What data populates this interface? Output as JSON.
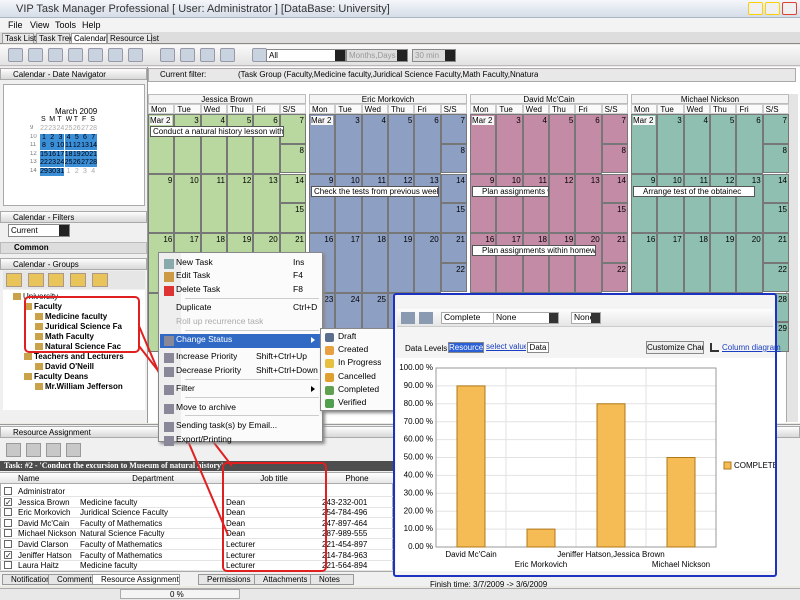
{
  "window": {
    "title": "VIP Task Manager Professional [ User: Administrator ] [DataBase: University]"
  },
  "menu": [
    "File",
    "View",
    "Tools",
    "Help"
  ],
  "tabs": [
    "Task List",
    "Task Tree",
    "Calendar",
    "Resource List"
  ],
  "toolbar": {
    "filter": "All",
    "scale": "Months,Days",
    "interval": "30 min"
  },
  "navigator": {
    "title": "Calendar - Date Navigator",
    "month": "March 2009",
    "weekdays": [
      "S",
      "M",
      "T",
      "W",
      "T",
      "F",
      "S"
    ],
    "weeks": [
      {
        "number": "9",
        "days": [
          "22",
          "23",
          "24",
          "25",
          "26",
          "27",
          "28"
        ]
      },
      {
        "number": "10",
        "days": [
          "1",
          "2",
          "3",
          "4",
          "5",
          "6",
          "7"
        ]
      },
      {
        "number": "11",
        "days": [
          "8",
          "9",
          "10",
          "11",
          "12",
          "13",
          "14"
        ]
      },
      {
        "number": "12",
        "days": [
          "15",
          "16",
          "17",
          "18",
          "19",
          "20",
          "21"
        ]
      },
      {
        "number": "13",
        "days": [
          "22",
          "23",
          "24",
          "25",
          "26",
          "27",
          "28"
        ]
      },
      {
        "number": "14",
        "days": [
          "29",
          "30",
          "31",
          "1",
          "2",
          "3",
          "4"
        ]
      }
    ]
  },
  "filters": {
    "title": "Calendar - Filters",
    "current": "Current",
    "section": "Common"
  },
  "groups": {
    "title": "Calendar - Groups",
    "tree": {
      "label": "University",
      "children": [
        {
          "label": "Faculty",
          "children": [
            {
              "label": "Medicine faculty"
            },
            {
              "label": "Juridical Science Fa"
            },
            {
              "label": "Math Faculty"
            },
            {
              "label": "Natural Science Fac"
            }
          ]
        },
        {
          "label": "Teachers and Lecturers",
          "children": [
            {
              "label": "David O'Neill"
            }
          ]
        },
        {
          "label": "Faculty Deans",
          "children": [
            {
              "label": "Mr.William Jefferson"
            }
          ]
        }
      ]
    }
  },
  "calendar": {
    "filter_label": "Current filter:",
    "filter": "(Task Group (Faculty,Medicine faculty,Juridical Science Faculty,Math Faculty,Nnatural Science Fac...",
    "days": [
      "Mon",
      "Tue",
      "Wed",
      "Thu",
      "Fri",
      "S/S"
    ],
    "weeks": [
      [
        "Mar 2",
        "3",
        "4",
        "5",
        "6",
        "7",
        "8"
      ],
      [
        "9",
        "10",
        "11",
        "12",
        "13",
        "14",
        "15"
      ],
      [
        "16",
        "17",
        "18",
        "19",
        "20",
        "21",
        "22"
      ],
      [
        "23",
        "24",
        "25",
        "26",
        "27",
        "28",
        "29"
      ]
    ],
    "resources": [
      {
        "name": "Jessica Brown",
        "color": "#b9d89f",
        "tasks": [
          {
            "week": 0,
            "text": "Conduct a natural history lesson with cla"
          }
        ]
      },
      {
        "name": "Eric Morkovich",
        "color": "#8e9fc4",
        "tasks": [
          {
            "week": 1,
            "text": "Check the tests from previous week and"
          }
        ]
      },
      {
        "name": "David Mc'Cain",
        "color": "#c48ba7",
        "tasks": [
          {
            "week": 1,
            "text": "Plan assignments wi"
          },
          {
            "week": 2,
            "text": "Plan assignments within homework pl"
          }
        ]
      },
      {
        "name": "Michael Nickson",
        "color": "#8fbfb0",
        "tasks": [
          {
            "week": 1,
            "text": "Arrange test of the obtainec"
          }
        ]
      }
    ]
  },
  "context_menu": [
    {
      "label": "New Task",
      "shortcut": "Ins"
    },
    {
      "label": "Edit Task",
      "shortcut": "F4"
    },
    {
      "label": "Delete Task",
      "shortcut": "F8"
    },
    {
      "label": "Duplicate",
      "shortcut": "Ctrl+D"
    },
    {
      "label": "Roll up recurrence task"
    },
    {
      "label": "Change Status"
    },
    {
      "label": "Increase Priority",
      "shortcut": "Shift+Ctrl+Up"
    },
    {
      "label": "Decrease Priority",
      "shortcut": "Shift+Ctrl+Down"
    },
    {
      "label": "Filter"
    },
    {
      "label": "Move to archive"
    },
    {
      "label": "Sending task(s) by Email..."
    },
    {
      "label": "Export/Printing"
    }
  ],
  "status_menu": [
    "Draft",
    "Created",
    "In Progress",
    "Cancelled",
    "Completed",
    "Verified"
  ],
  "resource_panel": {
    "title": "Resource Assignment",
    "task": "Task: #2 - 'Conduct the excursion to Museum of natural history'",
    "columns": [
      "Name",
      "Department",
      "Job title",
      "Phone"
    ],
    "rows": [
      {
        "cells": [
          "Administrator"
        ],
        "checked": false
      },
      {
        "cells": [
          "Jessica Brown",
          "Medicine faculty",
          "Dean",
          "243-232-001"
        ],
        "checked": true
      },
      {
        "cells": [
          "Eric Morkovich",
          "Juridical Science Faculty",
          "Dean",
          "254-784-496"
        ],
        "checked": false
      },
      {
        "cells": [
          "David Mc'Cain",
          "Faculty of Mathematics",
          "Dean",
          "247-897-464"
        ],
        "checked": false
      },
      {
        "cells": [
          "Michael Nickson",
          "Natural Science Faculty",
          "Dean",
          "287-989-555"
        ],
        "checked": false
      },
      {
        "cells": [
          "David Clarson",
          "Faculty of Mathematics",
          "Lecturer",
          "221-454-897"
        ],
        "checked": false
      },
      {
        "cells": [
          "Jeniffer Hatson",
          "Faculty of Mathematics",
          "Lecturer",
          "214-784-963"
        ],
        "checked": true
      },
      {
        "cells": [
          "Laura Haitz",
          "Medicine faculty",
          "Lecturer",
          "221-564-894"
        ],
        "checked": false
      }
    ]
  },
  "bottom_tabs": [
    "Notifications",
    "Comments",
    "Resource Assignment",
    "Permissions",
    "Attachments",
    "Notes"
  ],
  "status": {
    "progress": "0 %"
  },
  "report": {
    "combo1": "Complete",
    "combo2": "None",
    "combo3": "None",
    "data_levels": "Data Levels:",
    "levels": [
      "Resource",
      "select value",
      "Data"
    ],
    "customize": "Customize Chart",
    "diagram": "Column diagram",
    "footer": "Finish time: 3/7/2009 -> 3/6/2009",
    "chart": {
      "type": "bar",
      "categories": [
        "David Mc'Cain",
        "Eric Morkovich",
        "Jeniffer Hatson,Jessica Brown",
        "Michael Nickson"
      ],
      "series": [
        {
          "name": "COMPLETE",
          "color": "#f5bb55",
          "values": [
            90,
            10,
            80,
            50
          ]
        }
      ],
      "ylim": [
        0,
        100
      ],
      "yticks": [
        {
          "value": 0,
          "label": "0.00 %"
        },
        {
          "value": 10,
          "label": "10.00 %"
        },
        {
          "value": 20,
          "label": "20.00 %"
        },
        {
          "value": 30,
          "label": "30.00 %"
        },
        {
          "value": 40,
          "label": "40.00 %"
        },
        {
          "value": 50,
          "label": "50.00 %"
        },
        {
          "value": 60,
          "label": "60.00 %"
        },
        {
          "value": 70,
          "label": "70.00 %"
        },
        {
          "value": 80,
          "label": "80.00 %"
        },
        {
          "value": 90,
          "label": "90.00 %"
        },
        {
          "value": 100,
          "label": "100.00 %"
        }
      ],
      "grid": true
    }
  }
}
